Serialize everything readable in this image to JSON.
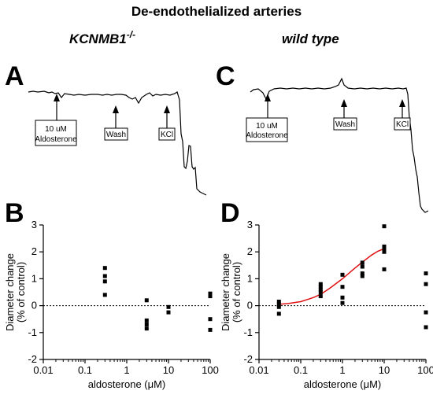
{
  "title": "De-endothelialized arteries",
  "groups": {
    "left": {
      "name": "KCNMB1",
      "superscript": "-/-"
    },
    "right": {
      "name": "wild type"
    }
  },
  "panels": {
    "A": "A",
    "B": "B",
    "C": "C",
    "D": "D"
  },
  "traces": {
    "A": {
      "markers": [
        {
          "lines": [
            "10 uM",
            "Aldosterone"
          ]
        },
        {
          "lines": [
            "Wash"
          ]
        },
        {
          "lines": [
            "KCl"
          ]
        }
      ]
    },
    "C": {
      "markers": [
        {
          "lines": [
            "10 uM",
            "Aldosterone"
          ]
        },
        {
          "lines": [
            "Wash"
          ]
        },
        {
          "lines": [
            "KCl"
          ]
        }
      ]
    }
  },
  "axes": {
    "xlabel_prefix": "aldosterone (",
    "xlabel_unit": "μM",
    "xlabel_suffix": ")",
    "ylabel_line1": "Diameter change",
    "ylabel_line2": "(% of control)",
    "x_ticks": [
      "0.01",
      "0.1",
      "1",
      "10",
      "100"
    ],
    "y_ticks": [
      "-2",
      "-1",
      "0",
      "1",
      "2",
      "3"
    ]
  },
  "chart_data": [
    {
      "panel": "B",
      "type": "scatter",
      "xscale": "log",
      "xlim": [
        0.01,
        100
      ],
      "ylim": [
        -2,
        3
      ],
      "baseline": 0,
      "points": [
        {
          "x": 0.3,
          "y": 1.4
        },
        {
          "x": 0.3,
          "y": 1.1
        },
        {
          "x": 0.3,
          "y": 0.9
        },
        {
          "x": 0.3,
          "y": 0.4
        },
        {
          "x": 3,
          "y": 0.2
        },
        {
          "x": 3,
          "y": -0.55
        },
        {
          "x": 3,
          "y": -0.7
        },
        {
          "x": 3,
          "y": -0.85
        },
        {
          "x": 10,
          "y": -0.05
        },
        {
          "x": 10,
          "y": -0.25
        },
        {
          "x": 100,
          "y": 0.45
        },
        {
          "x": 100,
          "y": 0.35
        },
        {
          "x": 100,
          "y": -0.5
        },
        {
          "x": 100,
          "y": -0.9
        }
      ]
    },
    {
      "panel": "D",
      "type": "scatter",
      "xscale": "log",
      "xlim": [
        0.01,
        100
      ],
      "ylim": [
        -2,
        3
      ],
      "baseline": 0,
      "points": [
        {
          "x": 0.03,
          "y": 0.15
        },
        {
          "x": 0.03,
          "y": 0.05
        },
        {
          "x": 0.03,
          "y": -0.05
        },
        {
          "x": 0.03,
          "y": -0.3
        },
        {
          "x": 0.3,
          "y": 0.8
        },
        {
          "x": 0.3,
          "y": 0.7
        },
        {
          "x": 0.3,
          "y": 0.6
        },
        {
          "x": 0.3,
          "y": 0.5
        },
        {
          "x": 0.3,
          "y": 0.35
        },
        {
          "x": 1,
          "y": 1.15
        },
        {
          "x": 1,
          "y": 0.7
        },
        {
          "x": 1,
          "y": 0.3
        },
        {
          "x": 1,
          "y": 0.1
        },
        {
          "x": 3,
          "y": 1.6
        },
        {
          "x": 3,
          "y": 1.45
        },
        {
          "x": 3,
          "y": 1.2
        },
        {
          "x": 3,
          "y": 1.1
        },
        {
          "x": 10,
          "y": 2.95
        },
        {
          "x": 10,
          "y": 2.2
        },
        {
          "x": 10,
          "y": 2.1
        },
        {
          "x": 10,
          "y": 2.0
        },
        {
          "x": 10,
          "y": 1.35
        },
        {
          "x": 100,
          "y": 1.2
        },
        {
          "x": 100,
          "y": 0.8
        },
        {
          "x": 100,
          "y": -0.25
        },
        {
          "x": 100,
          "y": -0.8
        }
      ],
      "fit": {
        "color": "#e01010",
        "x": [
          0.03,
          0.05,
          0.1,
          0.2,
          0.3,
          0.5,
          1,
          2,
          3,
          5,
          7,
          10
        ],
        "y": [
          0.05,
          0.08,
          0.15,
          0.3,
          0.42,
          0.65,
          1.0,
          1.4,
          1.62,
          1.88,
          2.02,
          2.12
        ]
      }
    }
  ],
  "colors": {
    "markers": "#000000",
    "fit": "#e01010",
    "trace": "#000000"
  }
}
